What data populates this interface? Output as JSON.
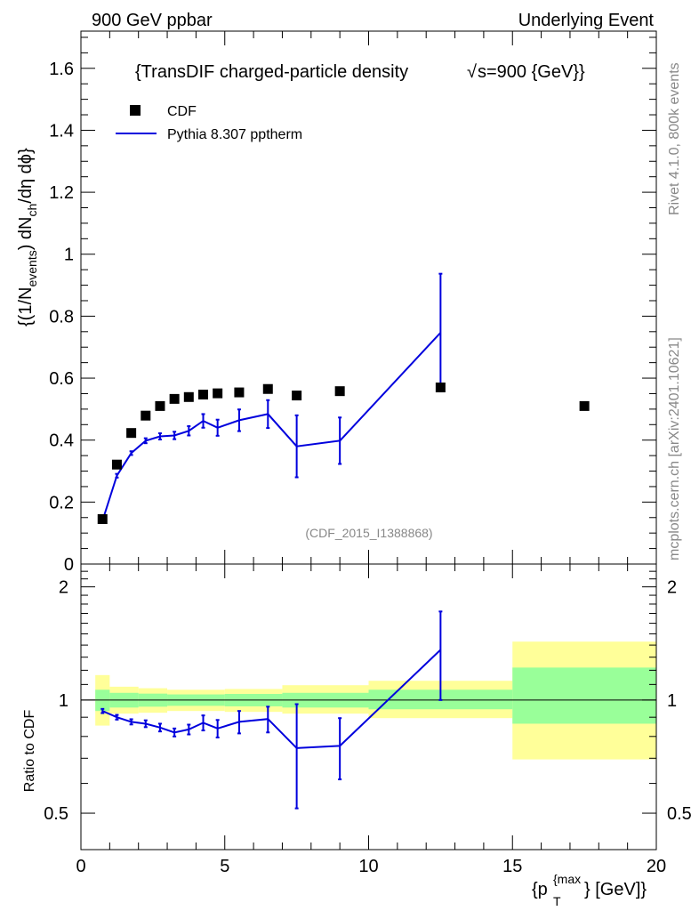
{
  "header": {
    "left": "900 GeV ppbar",
    "right": "Underlying Event"
  },
  "side_labels": {
    "rivet": "Rivet 4.1.0,  800k events",
    "mcplots": "mcplots.cern.ch [arXiv:2401.10621]"
  },
  "colors": {
    "mc": "#0000dd",
    "data": "#000000",
    "band_outer": "#ffff99",
    "band_inner": "#99ff99"
  },
  "chart_data": [
    {
      "type": "scatter",
      "panel": "main",
      "title": "{TransDIF charged-particle density",
      "title_sqrt": "√",
      "title_tail": "s=900 {GeV}}",
      "watermark": "(CDF_2015_I1388868)",
      "xlabel": "{p_T^{max}} [GeV]",
      "xlabel_parts": {
        "p": "{p",
        "sub": "T",
        "sup": "{max",
        "tail": "} [GeV]}"
      },
      "ylabel": "{(1/N_events) dN_ch/dη dϕ}",
      "ylabel_parts": {
        "a": "{(1/N",
        "b": "events",
        "c": ") dN",
        "d": "ch",
        "e": "/dη  dϕ}"
      },
      "xlim": [
        0,
        20
      ],
      "ylim": [
        0,
        1.72
      ],
      "yticks": [
        0,
        0.2,
        0.4,
        0.6,
        0.8,
        1,
        1.2,
        1.4,
        1.6
      ],
      "ytick_labels": [
        "0",
        "0.2",
        "0.4",
        "0.6",
        "0.8",
        "1",
        "1.2",
        "1.4",
        "1.6"
      ],
      "legend": {
        "position": "top-left",
        "entries": [
          {
            "name": "CDF",
            "style": "square-marker"
          },
          {
            "name": "Pythia 8.307 pptherm",
            "style": "line"
          }
        ]
      },
      "series": [
        {
          "name": "CDF",
          "x": [
            0.75,
            1.25,
            1.75,
            2.25,
            2.75,
            3.25,
            3.75,
            4.25,
            4.75,
            5.5,
            6.5,
            7.5,
            9.0,
            12.5,
            17.5
          ],
          "y": [
            0.145,
            0.321,
            0.423,
            0.479,
            0.51,
            0.533,
            0.539,
            0.547,
            0.551,
            0.554,
            0.565,
            0.544,
            0.558,
            0.57,
            0.51
          ]
        },
        {
          "name": "Pythia 8.307 pptherm",
          "x": [
            0.75,
            1.25,
            1.75,
            2.25,
            2.75,
            3.25,
            3.75,
            4.25,
            4.75,
            5.5,
            6.5,
            7.5,
            9.0,
            12.5
          ],
          "y": [
            0.14,
            0.285,
            0.358,
            0.398,
            0.412,
            0.415,
            0.43,
            0.462,
            0.44,
            0.464,
            0.484,
            0.38,
            0.398,
            0.747
          ],
          "yerr": [
            0.003,
            0.006,
            0.006,
            0.008,
            0.01,
            0.012,
            0.015,
            0.022,
            0.026,
            0.035,
            0.045,
            0.1,
            0.075,
            0.19
          ]
        }
      ]
    },
    {
      "type": "line",
      "panel": "ratio",
      "ylabel": "Ratio to CDF",
      "xlim": [
        0,
        20
      ],
      "ylim": [
        0.4,
        2.3
      ],
      "log_y": true,
      "yticks": [
        0.5,
        1,
        2
      ],
      "ytick_labels": [
        "0.5",
        "1",
        "2"
      ],
      "xticks": [
        0,
        5,
        10,
        15,
        20
      ],
      "xtick_labels": [
        "0",
        "5",
        "10",
        "15",
        "20"
      ],
      "reference_line": 1,
      "bands": [
        {
          "x0": 0.5,
          "x1": 1.0,
          "outer": [
            0.855,
            1.165
          ],
          "inner": [
            0.935,
            1.065
          ]
        },
        {
          "x0": 1.0,
          "x1": 2.0,
          "outer": [
            0.92,
            1.085
          ],
          "inner": [
            0.955,
            1.045
          ]
        },
        {
          "x0": 2.0,
          "x1": 3.0,
          "outer": [
            0.925,
            1.075
          ],
          "inner": [
            0.96,
            1.04
          ]
        },
        {
          "x0": 3.0,
          "x1": 5.0,
          "outer": [
            0.935,
            1.065
          ],
          "inner": [
            0.965,
            1.035
          ]
        },
        {
          "x0": 5.0,
          "x1": 7.0,
          "outer": [
            0.93,
            1.07
          ],
          "inner": [
            0.962,
            1.038
          ]
        },
        {
          "x0": 7.0,
          "x1": 10.0,
          "outer": [
            0.92,
            1.095
          ],
          "inner": [
            0.955,
            1.045
          ]
        },
        {
          "x0": 10.0,
          "x1": 15.0,
          "outer": [
            0.895,
            1.125
          ],
          "inner": [
            0.945,
            1.065
          ]
        },
        {
          "x0": 15.0,
          "x1": 20.0,
          "outer": [
            0.695,
            1.43
          ],
          "inner": [
            0.865,
            1.22
          ]
        }
      ],
      "series": [
        {
          "name": "Pythia 8.307 pptherm / CDF",
          "x": [
            0.75,
            1.25,
            1.75,
            2.25,
            2.75,
            3.25,
            3.75,
            4.25,
            4.75,
            5.5,
            6.5,
            7.5,
            9.0,
            12.5
          ],
          "y": [
            0.935,
            0.9,
            0.875,
            0.865,
            0.845,
            0.82,
            0.835,
            0.87,
            0.84,
            0.875,
            0.89,
            0.745,
            0.755,
            1.36
          ],
          "yerr": [
            0.012,
            0.013,
            0.014,
            0.018,
            0.02,
            0.02,
            0.025,
            0.04,
            0.045,
            0.06,
            0.07,
            0.23,
            0.14,
            0.36
          ]
        }
      ]
    }
  ]
}
